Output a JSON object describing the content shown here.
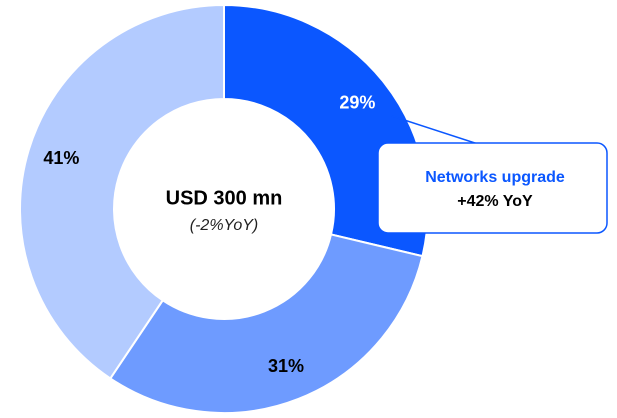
{
  "chart_data": {
    "type": "donut",
    "values": [
      29,
      31,
      41
    ],
    "value_labels": [
      "29%",
      "31%",
      "41%"
    ],
    "colors": [
      "#0b57ff",
      "#6e9bff",
      "#b3cbff"
    ],
    "label_colors": [
      "#ffffff",
      "#000000",
      "#000000"
    ],
    "center_title": "USD 300 mn",
    "center_subtitle": "(-2%YoY)",
    "annotation": {
      "title": "Networks upgrade",
      "text": "+42% YoY"
    }
  }
}
